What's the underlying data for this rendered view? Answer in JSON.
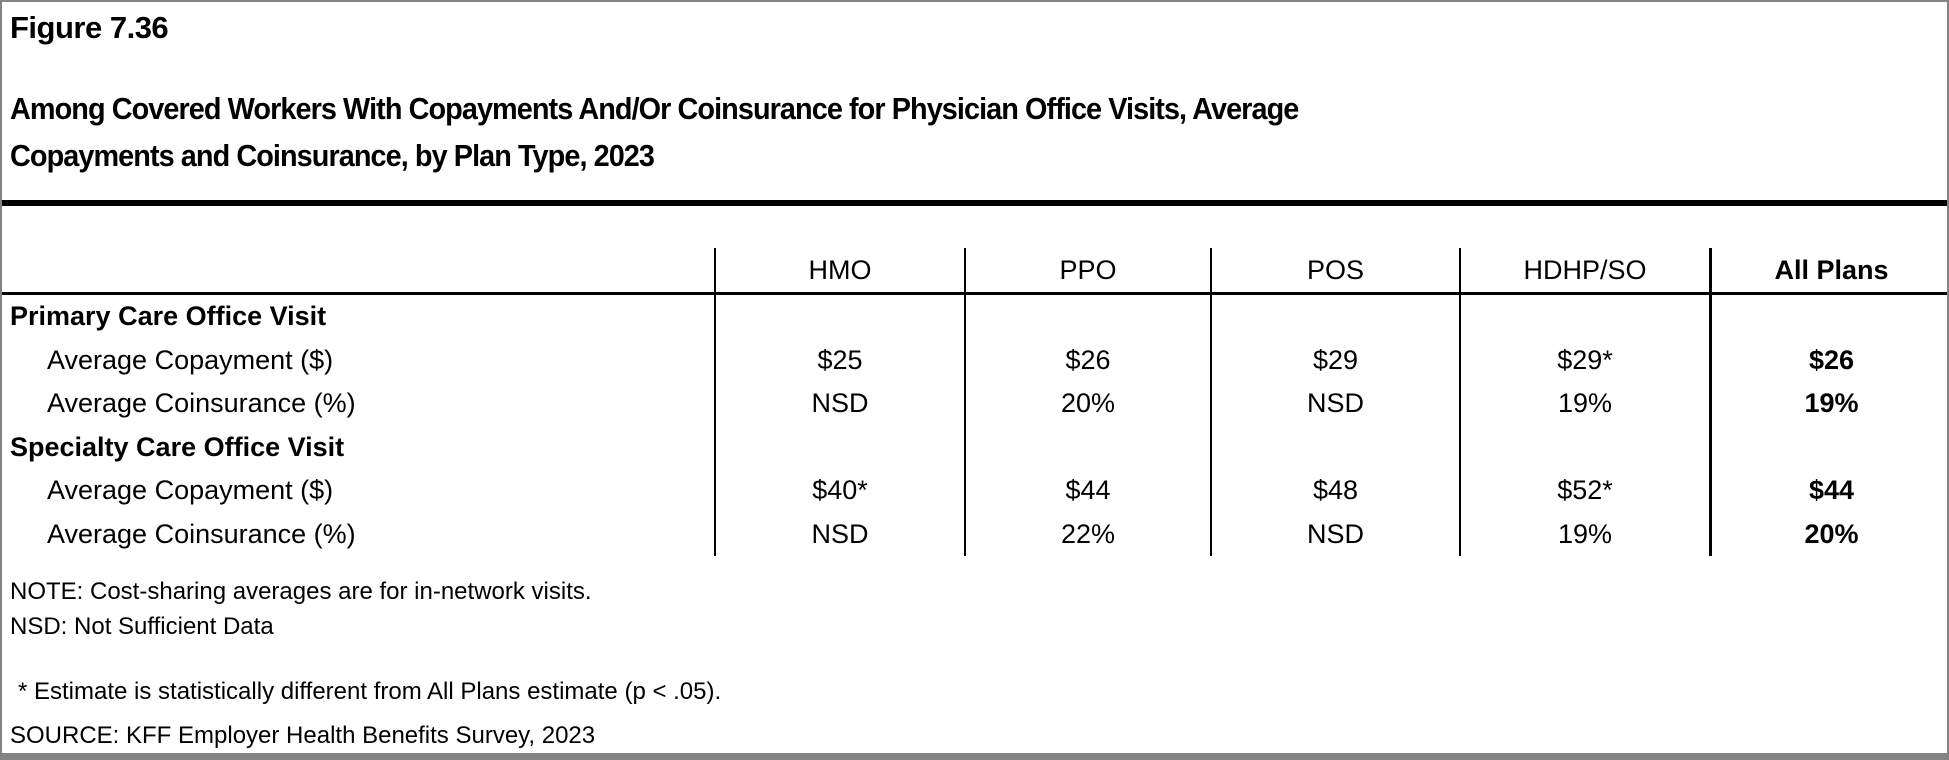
{
  "figure": {
    "number": "Figure 7.36",
    "title_lines": [
      "Among Covered Workers With Copayments And/Or Coinsurance for Physician Office Visits, Average",
      "Copayments and Coinsurance, by Plan Type, 2023"
    ]
  },
  "chart_data": {
    "type": "table",
    "columns": [
      "HMO",
      "PPO",
      "POS",
      "HDHP/SO",
      "All Plans"
    ],
    "rows": [
      {
        "label": "Primary Care Office Visit",
        "kind": "section",
        "values": [
          "",
          "",
          "",
          "",
          ""
        ]
      },
      {
        "label": "Average Copayment ($)",
        "kind": "data",
        "values": [
          "$25",
          "$26",
          "$29",
          "$29*",
          "$26"
        ]
      },
      {
        "label": "Average Coinsurance (%)",
        "kind": "data",
        "values": [
          "NSD",
          "20%",
          "NSD",
          "19%",
          "19%"
        ]
      },
      {
        "label": "Specialty Care Office Visit",
        "kind": "section",
        "values": [
          "",
          "",
          "",
          "",
          ""
        ]
      },
      {
        "label": "Average Copayment ($)",
        "kind": "data",
        "values": [
          "$40*",
          "$44",
          "$48",
          "$52*",
          "$44"
        ]
      },
      {
        "label": "Average Coinsurance (%)",
        "kind": "data",
        "values": [
          "NSD",
          "22%",
          "NSD",
          "19%",
          "20%"
        ]
      }
    ],
    "highlight_column": "All Plans"
  },
  "notes": {
    "note": "NOTE: Cost-sharing averages are for in-network visits.",
    "nsd": "NSD: Not Sufficient Data",
    "asterisk": "* Estimate is statistically different from All Plans estimate (p < .05).",
    "source": "SOURCE: KFF Employer Health Benefits Survey, 2023"
  },
  "colors": {
    "background": "#ffffff",
    "text": "#000000",
    "frame_gray": "#828282",
    "rule_black": "#000000"
  }
}
